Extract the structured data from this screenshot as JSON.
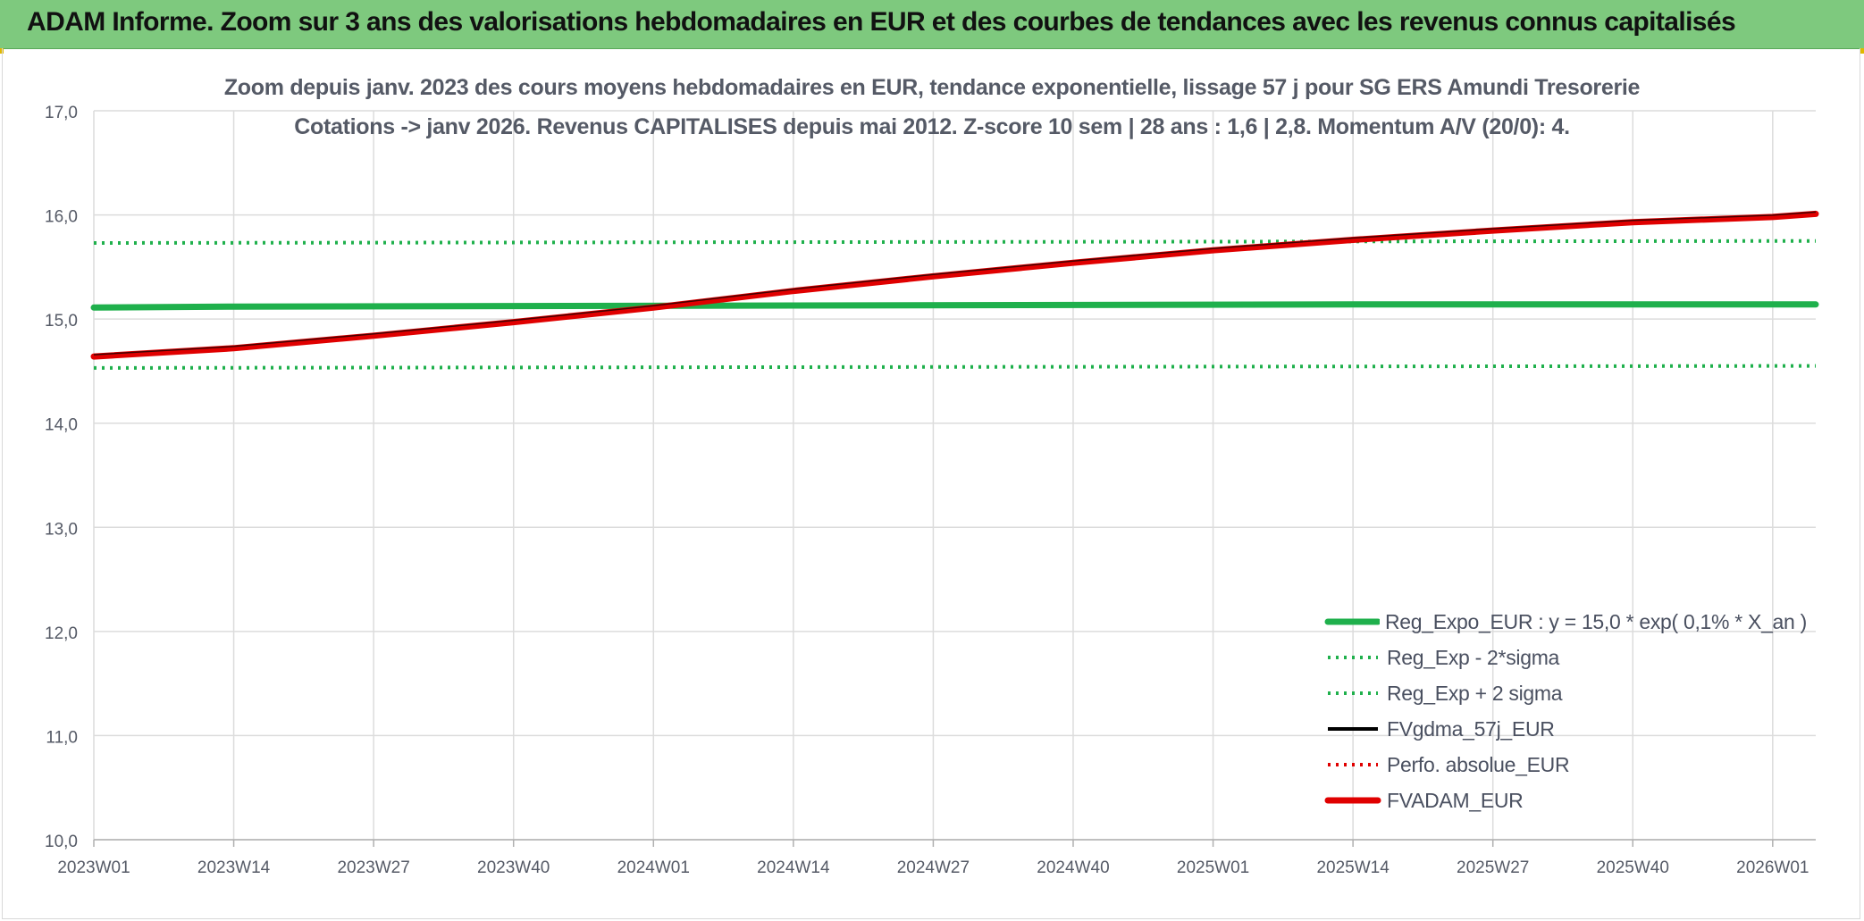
{
  "header": {
    "title": "ADAM Informe. Zoom sur 3 ans des valorisations hebdomadaires en EUR et des courbes de tendances avec les revenus connus capitalisés"
  },
  "colors": {
    "banner": "#7ec97e",
    "reg_expo": "#1fb04c",
    "sigma": "#1fb04c",
    "fvgdma": "#000000",
    "perfo": "#e00000",
    "fvadam": "#e00000",
    "grid": "#dcdcdc"
  },
  "chart_data": {
    "type": "line",
    "title": "Zoom depuis janv. 2023 des cours moyens hebdomadaires en EUR, tendance exponentielle, lissage 57 j pour SG ERS Amundi Tresorerie",
    "subtitle": "Cotations -> janv 2026. Revenus CAPITALISES depuis mai 2012. Z-score 10 sem | 28 ans : 1,6 | 2,8. Momentum A/V (20/0): 4.",
    "xlabel": "",
    "ylabel": "",
    "ylim": [
      10.0,
      17.0
    ],
    "y_ticks": [
      "10,0",
      "11,0",
      "12,0",
      "13,0",
      "14,0",
      "15,0",
      "16,0",
      "17,0"
    ],
    "x_ticks": [
      "2023W01",
      "2023W14",
      "2023W27",
      "2023W40",
      "2024W01",
      "2024W14",
      "2024W27",
      "2024W40",
      "2025W01",
      "2025W14",
      "2025W27",
      "2025W40",
      "2026W01"
    ],
    "x_range_weeks": [
      "2023W01",
      "2026W05"
    ],
    "grid": true,
    "legend_position": "bottom-right",
    "series": [
      {
        "name": "Reg_Expo_EUR : y = 15,0 * exp( 0,1% *  X_an )",
        "style": "solid-thick",
        "color": "#1fb04c",
        "points": [
          [
            "2023W01",
            15.11
          ],
          [
            "2023W14",
            15.12
          ],
          [
            "2024W14",
            15.13
          ],
          [
            "2025W14",
            15.14
          ],
          [
            "2026W05",
            15.14
          ]
        ]
      },
      {
        "name": "Reg_Exp - 2*sigma",
        "style": "dotted",
        "color": "#1fb04c",
        "points": [
          [
            "2023W01",
            14.53
          ],
          [
            "2026W05",
            14.55
          ]
        ]
      },
      {
        "name": "Reg_Exp + 2 sigma",
        "style": "dotted",
        "color": "#1fb04c",
        "points": [
          [
            "2023W01",
            15.73
          ],
          [
            "2026W05",
            15.75
          ]
        ]
      },
      {
        "name": "FVgdma_57j_EUR",
        "style": "solid",
        "color": "#000000",
        "points": [
          [
            "2023W01",
            14.64
          ],
          [
            "2023W14",
            14.72
          ],
          [
            "2023W27",
            14.84
          ],
          [
            "2023W40",
            14.97
          ],
          [
            "2024W01",
            15.11
          ],
          [
            "2024W14",
            15.27
          ],
          [
            "2024W27",
            15.41
          ],
          [
            "2024W40",
            15.54
          ],
          [
            "2025W01",
            15.66
          ],
          [
            "2025W14",
            15.76
          ],
          [
            "2025W27",
            15.85
          ],
          [
            "2025W40",
            15.93
          ],
          [
            "2026W01",
            15.98
          ],
          [
            "2026W05",
            16.01
          ]
        ]
      },
      {
        "name": "Perfo. absolue_EUR",
        "style": "dotted",
        "color": "#e00000",
        "points": []
      },
      {
        "name": "FVADAM_EUR",
        "style": "solid-thick",
        "color": "#e00000",
        "points": [
          [
            "2023W01",
            14.64
          ],
          [
            "2023W14",
            14.72
          ],
          [
            "2023W27",
            14.84
          ],
          [
            "2023W40",
            14.97
          ],
          [
            "2024W01",
            15.11
          ],
          [
            "2024W14",
            15.27
          ],
          [
            "2024W27",
            15.41
          ],
          [
            "2024W40",
            15.54
          ],
          [
            "2025W01",
            15.66
          ],
          [
            "2025W14",
            15.76
          ],
          [
            "2025W27",
            15.85
          ],
          [
            "2025W40",
            15.93
          ],
          [
            "2026W01",
            15.98
          ],
          [
            "2026W05",
            16.01
          ]
        ]
      }
    ]
  }
}
